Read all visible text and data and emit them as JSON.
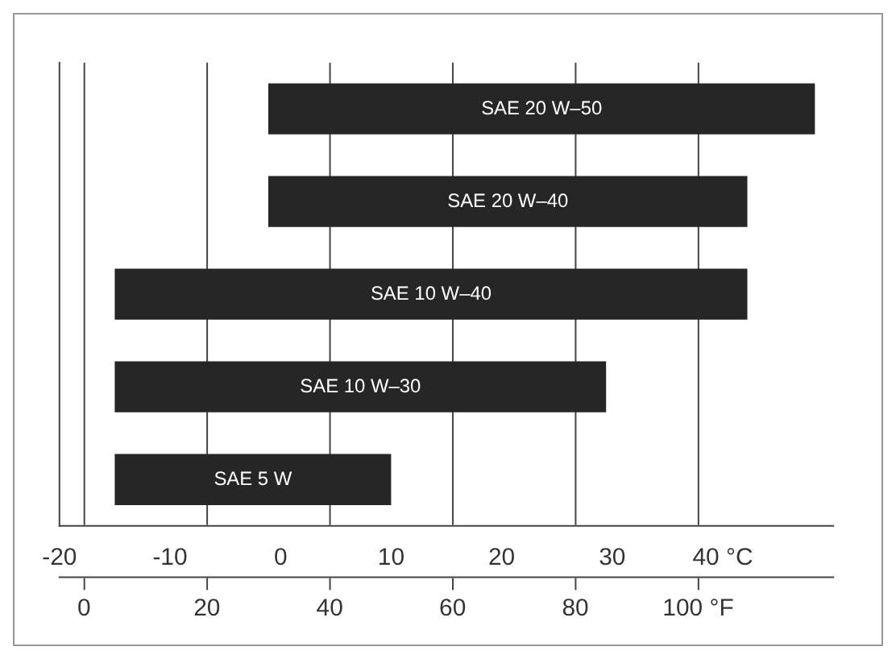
{
  "chart_data": {
    "type": "bar",
    "orientation": "horizontal",
    "categories": [
      "SAE 20 W–50",
      "SAE 20 W–40",
      "SAE 10 W–40",
      "SAE 10 W–30",
      "SAE 5 W"
    ],
    "base": [
      30,
      30,
      5,
      5,
      5
    ],
    "values": [
      89,
      78,
      103,
      80,
      45
    ],
    "color": "#262626",
    "xlim": [
      -4,
      122
    ],
    "xticks": [
      0,
      20,
      40,
      60,
      80,
      {
        "value": 100,
        "label": "100 °F"
      }
    ],
    "x2lim": [
      -20,
      50
    ],
    "x2ticks": [
      -20,
      -10,
      0,
      10,
      20,
      30,
      {
        "value": 40,
        "label": "40 °C"
      }
    ],
    "grid": "x",
    "tick_labels": "x"
  }
}
